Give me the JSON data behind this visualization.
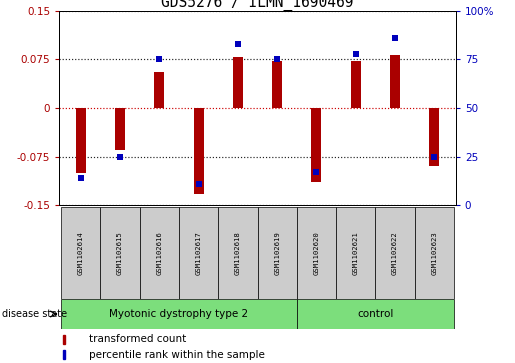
{
  "title": "GDS5276 / ILMN_1690469",
  "samples": [
    "GSM1102614",
    "GSM1102615",
    "GSM1102616",
    "GSM1102617",
    "GSM1102618",
    "GSM1102619",
    "GSM1102620",
    "GSM1102621",
    "GSM1102622",
    "GSM1102623"
  ],
  "red_values": [
    -0.1,
    -0.065,
    0.055,
    -0.133,
    0.078,
    0.072,
    -0.115,
    0.072,
    0.082,
    -0.09
  ],
  "blue_values": [
    14,
    25,
    75,
    11,
    83,
    75,
    17,
    78,
    86,
    25
  ],
  "groups": [
    {
      "label": "Myotonic dystrophy type 2",
      "start": 0,
      "end": 6
    },
    {
      "label": "control",
      "start": 6,
      "end": 10
    }
  ],
  "ylim_left": [
    -0.15,
    0.15
  ],
  "ylim_right": [
    0,
    100
  ],
  "yticks_left": [
    -0.15,
    -0.075,
    0,
    0.075,
    0.15
  ],
  "yticks_right": [
    0,
    25,
    50,
    75,
    100
  ],
  "red_color": "#aa0000",
  "blue_color": "#0000bb",
  "group_color": "#7cde7c",
  "bar_width": 0.25,
  "legend_red": "transformed count",
  "legend_blue": "percentile rank within the sample",
  "disease_state_label": "disease state",
  "sample_bg_color": "#cccccc",
  "n_samples": 10,
  "n_disease": 6,
  "title_fontsize": 10.5,
  "tick_fontsize": 7.5,
  "sample_fontsize": 5.2,
  "group_fontsize": 7.5,
  "legend_fontsize": 7.5
}
